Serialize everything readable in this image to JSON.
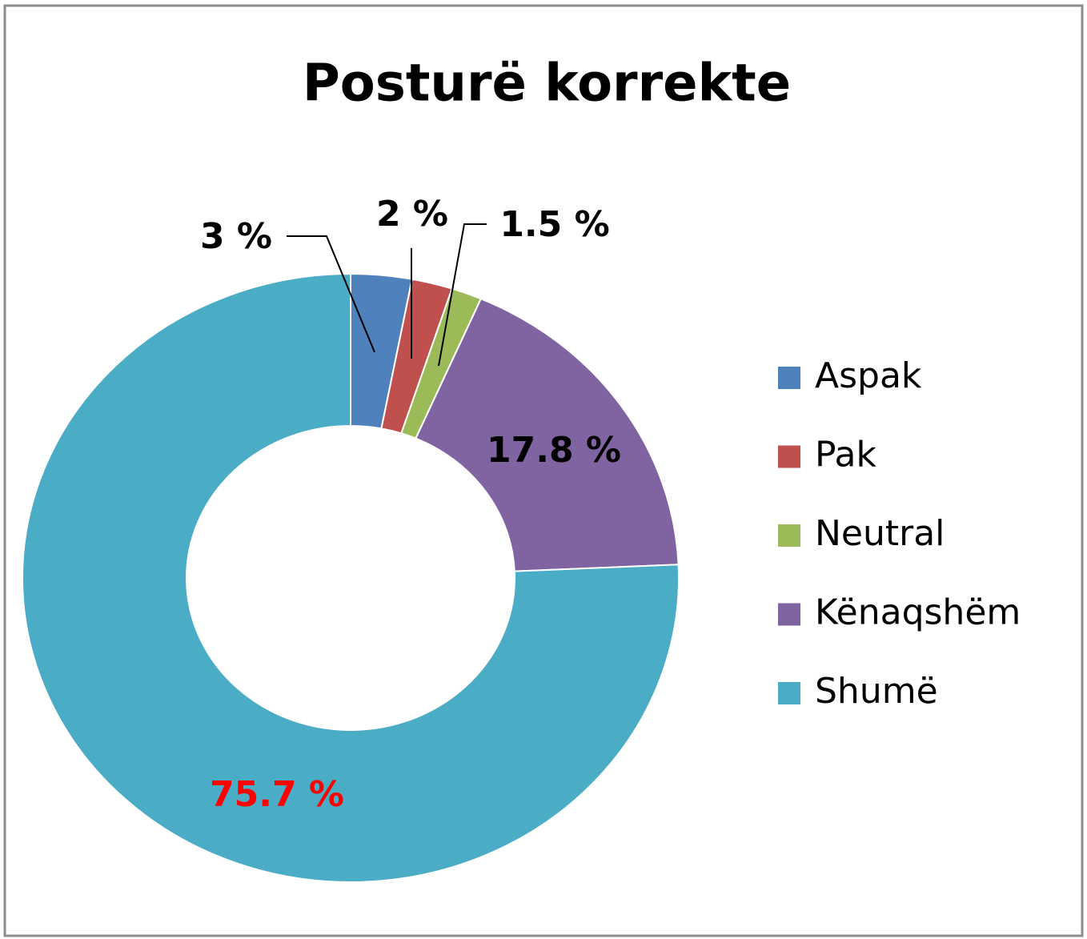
{
  "chart_data": {
    "type": "donut",
    "title": "Posturë korrekte",
    "categories": [
      "Aspak",
      "Pak",
      "Neutral",
      "Kënaqshëm",
      "Shumë"
    ],
    "values": [
      3,
      2,
      1.5,
      17.8,
      75.7
    ],
    "value_labels": [
      "3 %",
      "2 %",
      "1.5 %",
      "17.8 %",
      "75.7 %"
    ],
    "colors": [
      "#4f81bd",
      "#c0504d",
      "#9bbb59",
      "#8064a2",
      "#4bacc6"
    ],
    "value_label_colors": [
      "#000000",
      "#000000",
      "#000000",
      "#000000",
      "#ff0000"
    ],
    "legend": "right"
  }
}
